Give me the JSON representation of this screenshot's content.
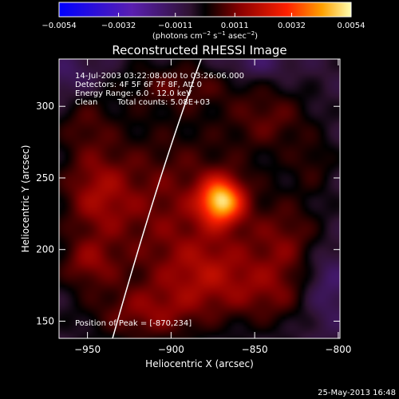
{
  "chart_data": {
    "type": "heatmap",
    "title": "Reconstructed RHESSI Image",
    "xlabel": "Heliocentric X (arcsec)",
    "ylabel": "Heliocentric Y (arcsec)",
    "xlim": [
      -967,
      -799
    ],
    "ylim": [
      138,
      333
    ],
    "x_ticks": [
      -950,
      -900,
      -850,
      -800
    ],
    "y_ticks": [
      150,
      200,
      250,
      300
    ],
    "x_tick_labels": [
      "−950",
      "−900",
      "−850",
      "−800"
    ],
    "y_tick_labels": [
      "150",
      "200",
      "250",
      "300"
    ],
    "colorbar": {
      "range": [
        -0.0054,
        0.0054
      ],
      "tick_values": [
        -0.0054,
        -0.0032,
        -0.0011,
        0.0011,
        0.0032,
        0.0054
      ],
      "tick_labels": [
        "−0.0054",
        "−0.0032",
        "−0.0011",
        "0.0011",
        "0.0032",
        "0.0054"
      ],
      "units_prefix": "(photons cm",
      "units_exp1": "−2",
      "units_mid1": " s",
      "units_exp2": "−1",
      "units_mid2": " asec",
      "units_exp3": "−2",
      "units_suffix": ")"
    },
    "annotations": {
      "time_range": "14-Jul-2003 03:22:08.000 to 03:26:06.000",
      "detectors": "Detectors: 4F 5F 6F 7F 8F, Att 0",
      "energy_range": "Energy Range: 6.0 - 12.0 keV",
      "clean_label": "Clean",
      "total_counts": "Total counts: 5.08E+03",
      "peak_position": "Position of Peak = [-870,234]"
    },
    "peak": {
      "x": -870,
      "y": 234,
      "value": 0.0054
    },
    "sources": [
      {
        "x": -870,
        "y": 234,
        "sx": 9,
        "sy": 11,
        "a": 0.0046
      },
      {
        "x": -900,
        "y": 228,
        "sx": 40,
        "sy": 45,
        "a": 0.0016
      },
      {
        "x": -945,
        "y": 240,
        "sx": 14,
        "sy": 22,
        "a": 0.0014
      },
      {
        "x": -950,
        "y": 190,
        "sx": 12,
        "sy": 12,
        "a": 0.0013
      },
      {
        "x": -915,
        "y": 155,
        "sx": 24,
        "sy": 14,
        "a": 0.0014
      },
      {
        "x": -878,
        "y": 182,
        "sx": 20,
        "sy": 18,
        "a": 0.0014
      },
      {
        "x": -838,
        "y": 168,
        "sx": 20,
        "sy": 16,
        "a": 0.0012
      },
      {
        "x": -830,
        "y": 205,
        "sx": 16,
        "sy": 20,
        "a": 0.0013
      },
      {
        "x": -840,
        "y": 292,
        "sx": 18,
        "sy": 16,
        "a": 0.0012
      },
      {
        "x": -895,
        "y": 315,
        "sx": 25,
        "sy": 12,
        "a": 0.0011
      },
      {
        "x": -952,
        "y": 290,
        "sx": 12,
        "sy": 15,
        "a": 0.0009
      },
      {
        "x": -815,
        "y": 260,
        "sx": 10,
        "sy": 14,
        "a": 0.0008
      },
      {
        "x": -808,
        "y": 175,
        "sx": 12,
        "sy": 20,
        "a": -0.0012
      },
      {
        "x": -850,
        "y": 330,
        "sx": 14,
        "sy": 8,
        "a": -0.0009
      },
      {
        "x": -960,
        "y": 320,
        "sx": 14,
        "sy": 12,
        "a": -0.0008
      }
    ],
    "limb": [
      [
        -935,
        138
      ],
      [
        -920,
        200
      ],
      [
        -902,
        270
      ],
      [
        -882,
        333
      ]
    ],
    "grid": false
  },
  "footer": {
    "date": "25-May-2013 16:48"
  }
}
